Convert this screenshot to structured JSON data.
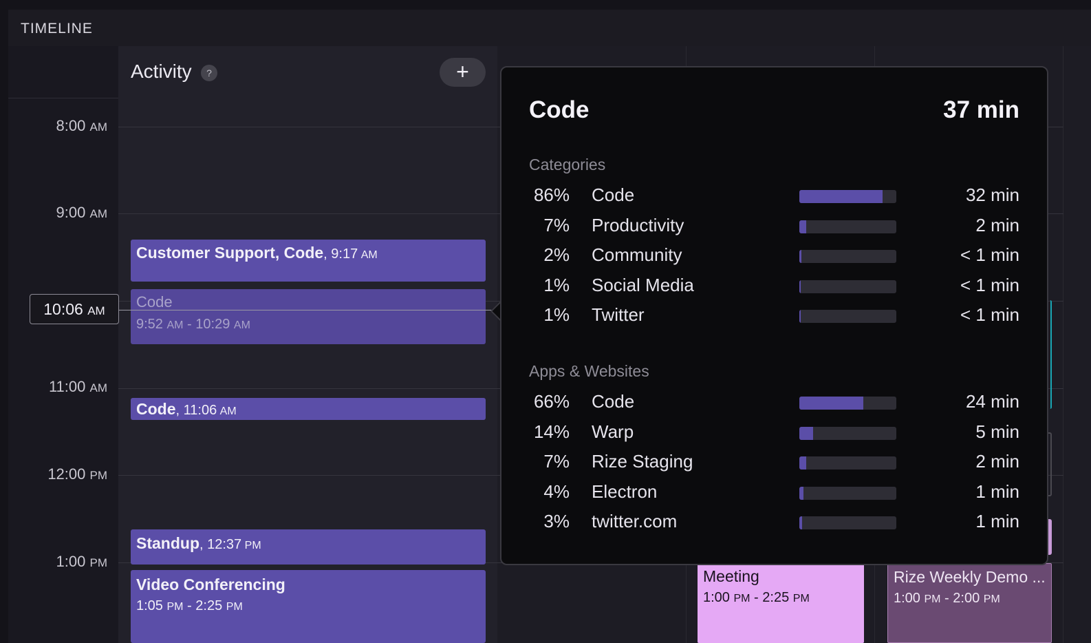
{
  "panel": {
    "title": "TIMELINE"
  },
  "activity": {
    "title": "Activity",
    "help": "?",
    "add": "+"
  },
  "time_labels": [
    {
      "time": "8:00",
      "ap": "AM"
    },
    {
      "time": "9:00",
      "ap": "AM"
    },
    {
      "time": "11:00",
      "ap": "AM"
    },
    {
      "time": "12:00",
      "ap": "PM"
    },
    {
      "time": "1:00",
      "ap": "PM"
    }
  ],
  "now": {
    "time": "10:06",
    "ap": "AM"
  },
  "blocks": {
    "customer_support": {
      "title": "Customer Support, Code",
      "sep": ", ",
      "time": "9:17",
      "ap": "AM"
    },
    "code_current": {
      "title": "Code",
      "start": "9:52",
      "start_ap": "AM",
      "end": "10:29",
      "end_ap": "AM"
    },
    "code_1106": {
      "title": "Code",
      "time": "11:06",
      "ap": "AM"
    },
    "standup": {
      "title": "Standup",
      "time": "12:37",
      "ap": "PM"
    },
    "video": {
      "title": "Video Conferencing",
      "start": "1:05",
      "start_ap": "PM",
      "end": "2:25",
      "end_ap": "PM"
    }
  },
  "events": {
    "meeting": {
      "title": "Meeting",
      "start": "1:00",
      "start_ap": "PM",
      "end": "2:25",
      "end_ap": "PM",
      "color": "#e5a9f5"
    },
    "rize_demo": {
      "title": "Rize Weekly Demo ...",
      "start": "1:00",
      "start_ap": "PM",
      "end": "2:00",
      "end_ap": "PM",
      "color": "#6a4a72"
    }
  },
  "popover": {
    "title": "Code",
    "total": "37 min",
    "categories_label": "Categories",
    "categories": [
      {
        "pct": "86%",
        "name": "Code",
        "dur": "32 min",
        "fill": 0.86
      },
      {
        "pct": "7%",
        "name": "Productivity",
        "dur": "2 min",
        "fill": 0.07
      },
      {
        "pct": "2%",
        "name": "Community",
        "dur": "< 1 min",
        "fill": 0.02
      },
      {
        "pct": "1%",
        "name": "Social Media",
        "dur": "< 1 min",
        "fill": 0.01
      },
      {
        "pct": "1%",
        "name": "Twitter",
        "dur": "< 1 min",
        "fill": 0.01
      }
    ],
    "apps_label": "Apps & Websites",
    "apps": [
      {
        "pct": "66%",
        "name": "Code",
        "dur": "24 min",
        "fill": 0.66
      },
      {
        "pct": "14%",
        "name": "Warp",
        "dur": "5 min",
        "fill": 0.14
      },
      {
        "pct": "7%",
        "name": "Rize Staging",
        "dur": "2 min",
        "fill": 0.07
      },
      {
        "pct": "4%",
        "name": "Electron",
        "dur": "1 min",
        "fill": 0.04
      },
      {
        "pct": "3%",
        "name": "twitter.com",
        "dur": "1 min",
        "fill": 0.03
      }
    ]
  },
  "colors": {
    "accent": "#5b4ea8",
    "teal_edge": "#19a7b5"
  }
}
